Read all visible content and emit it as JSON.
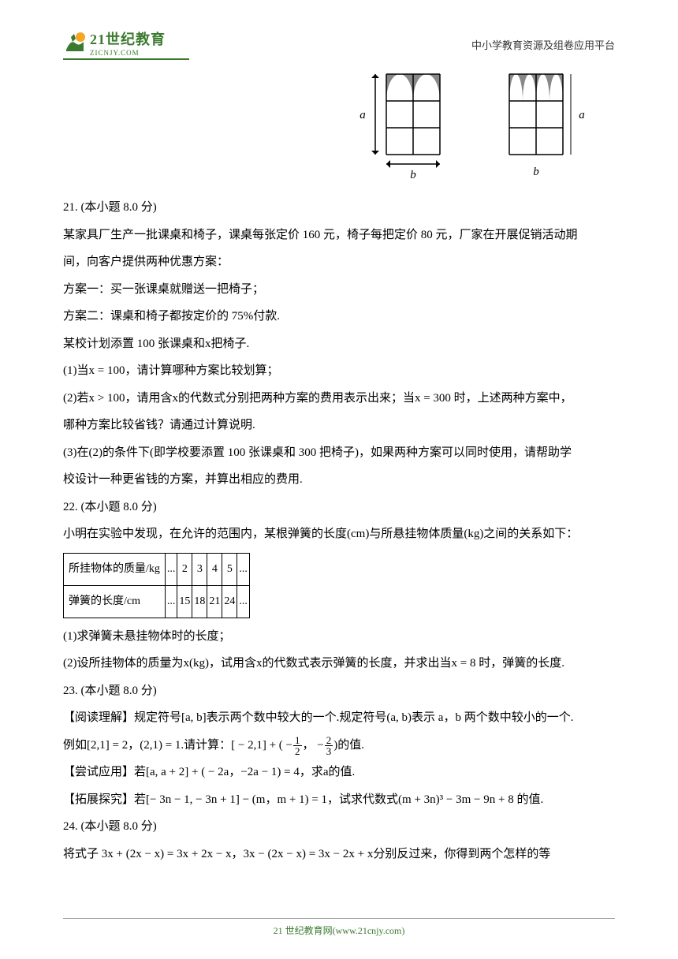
{
  "header": {
    "logo_top": "21世纪教育",
    "logo_bottom": "ZICNJY.COM",
    "right_text": "中小学教育资源及组卷应用平台"
  },
  "diagram": {
    "label_a": "a",
    "label_b": "b",
    "grid_cols": 2,
    "grid_rows": 3,
    "cell_size": 34,
    "colors": {
      "line": "#000000",
      "fill_shaded": "#888888",
      "background": "#ffffff"
    }
  },
  "q21": {
    "num": "21. (本小题 8.0 分)",
    "l1": "某家具厂生产一批课桌和椅子，课桌每张定价 160 元，椅子每把定价 80 元，厂家在开展促销活动期",
    "l2": "间，向客户提供两种优惠方案：",
    "l3": "方案一：买一张课桌就赠送一把椅子；",
    "l4": "方案二：课桌和椅子都按定价的 75%付款.",
    "l5": "某校计划添置 100 张课桌和x把椅子.",
    "l6": "(1)当x = 100，请计算哪种方案比较划算；",
    "l7": "(2)若x > 100，请用含x的代数式分别把两种方案的费用表示出来；当x = 300 时，上述两种方案中，",
    "l8": "哪种方案比较省钱？请通过计算说明.",
    "l9": "(3)在(2)的条件下(即学校要添置 100 张课桌和 300 把椅子)，如果两种方案可以同时使用，请帮助学",
    "l10": "校设计一种更省钱的方案，并算出相应的费用."
  },
  "q22": {
    "num": "22. (本小题 8.0 分)",
    "l1": "小明在实验中发现，在允许的范围内，某根弹簧的长度(cm)与所悬挂物体质量(kg)之间的关系如下：",
    "table": {
      "row1_label": "所挂物体的质量/kg",
      "row2_label": "弹簧的长度/cm",
      "cols": [
        "...",
        "2",
        "3",
        "4",
        "5",
        "..."
      ],
      "row2_vals": [
        "...",
        "15",
        "18",
        "21",
        "24",
        "..."
      ]
    },
    "l2": "(1)求弹簧未悬挂物体时的长度；",
    "l3": "(2)设所挂物体的质量为x(kg)，试用含x的代数式表示弹簧的长度，并求出当x = 8 时，弹簧的长度."
  },
  "q23": {
    "num": "23. (本小题 8.0 分)",
    "l1": "【阅读理解】规定符号[a, b]表示两个数中较大的一个.规定符号(a, b)表示 a，b 两个数中较小的一个.",
    "l2_pre": "例如[2,1] = 2，(2,1) = 1.请计算：[ − 2,1] + ( −",
    "l2_mid": "， −",
    "l2_post": ")的值.",
    "frac1_num": "1",
    "frac1_den": "2",
    "frac2_num": "2",
    "frac2_den": "3",
    "l3": "【尝试应用】若[a, a + 2] + ( − 2a，−2a − 1) = 4，求a的值.",
    "l4": "【拓展探究】若[− 3n − 1, − 3n + 1] − (m，m + 1) = 1，试求代数式(m + 3n)³ − 3m − 9n + 8 的值."
  },
  "q24": {
    "num": "24. (本小题 8.0 分)",
    "l1": "将式子 3x + (2x − x) = 3x + 2x − x，3x − (2x − x) = 3x − 2x + x分别反过来，你得到两个怎样的等"
  },
  "footer": {
    "text": "21 世纪教育网(www.21cnjy.com)"
  }
}
